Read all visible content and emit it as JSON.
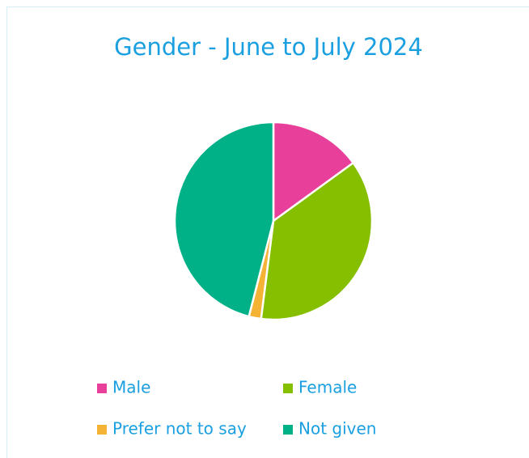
{
  "chart_data": {
    "type": "pie",
    "title": "Gender - June to July 2024",
    "categories": [
      "Male",
      "Female",
      "Prefer not to say",
      "Not given"
    ],
    "values": [
      15,
      37,
      2,
      46
    ],
    "colors": [
      "#e8409a",
      "#86be00",
      "#f5b335",
      "#00b187"
    ]
  }
}
